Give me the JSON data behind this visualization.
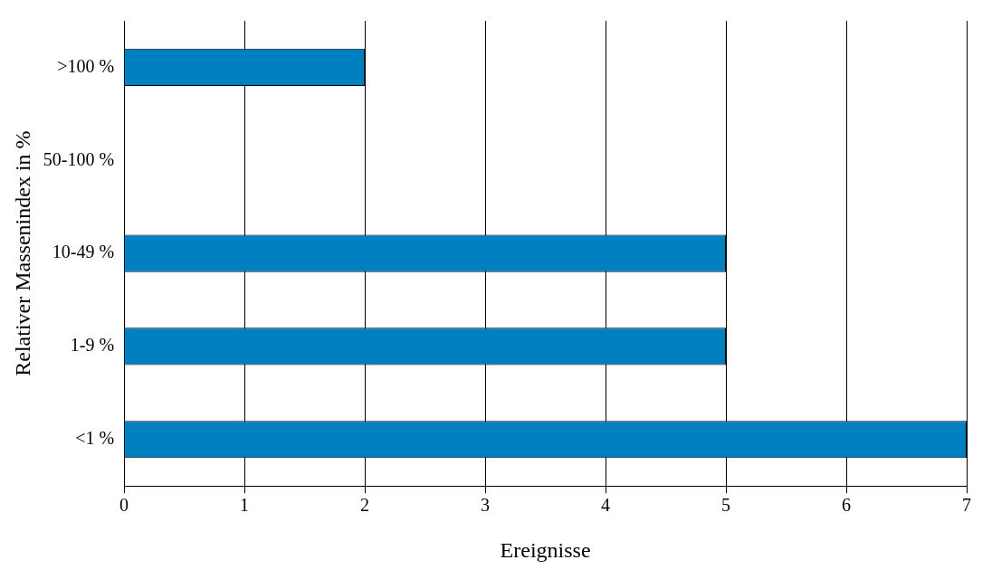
{
  "chart_data": {
    "type": "bar",
    "orientation": "horizontal",
    "xlabel": "Ereignisse",
    "ylabel": "Relativer Massenindex in %",
    "categories": [
      ">100 %",
      "50-100 %",
      "10-49 %",
      "1-9 %",
      "<1 %"
    ],
    "values": [
      2,
      0,
      5,
      5,
      7
    ],
    "color": "#0080c0",
    "xlim": [
      0,
      7
    ],
    "xticks": [
      0,
      1,
      2,
      3,
      4,
      5,
      6,
      7
    ],
    "grid": "x",
    "legend": false
  }
}
